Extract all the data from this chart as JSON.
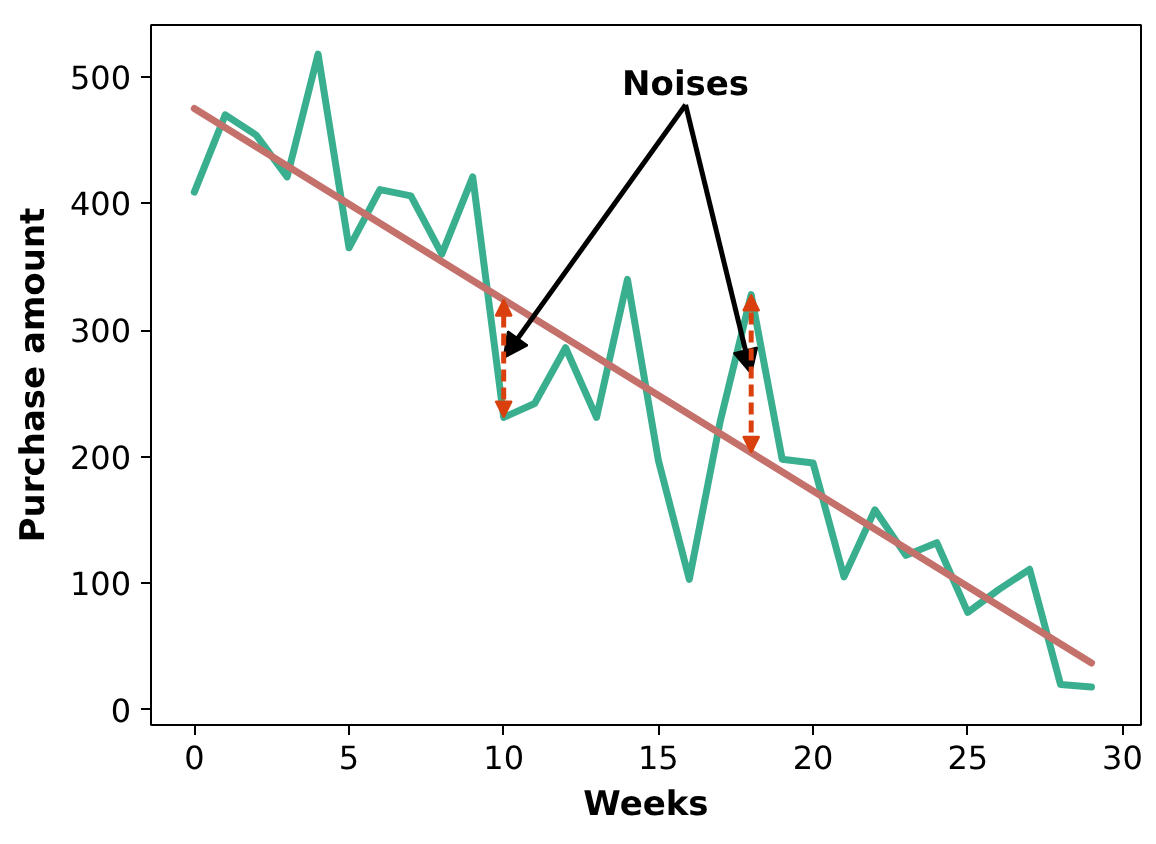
{
  "chart_data": {
    "type": "line",
    "xlabel": "Weeks",
    "ylabel": "Purchase amount",
    "x": [
      0,
      1,
      2,
      3,
      4,
      5,
      6,
      7,
      8,
      9,
      10,
      11,
      12,
      13,
      14,
      15,
      16,
      17,
      18,
      19,
      20,
      21,
      22,
      23,
      24,
      25,
      26,
      27,
      28,
      29
    ],
    "series": [
      {
        "color": "#3aaf8f",
        "values": [
          409,
          470,
          454,
          421,
          518,
          365,
          411,
          406,
          360,
          421,
          231,
          242,
          286,
          231,
          340,
          197,
          103,
          228,
          328,
          198,
          195,
          105,
          158,
          122,
          132,
          77,
          95,
          111,
          20,
          18
        ]
      },
      {
        "type": "line",
        "color": "#c4706b",
        "x": [
          0,
          29
        ],
        "values": [
          475,
          37
        ]
      }
    ],
    "xlim": [
      -1.4,
      30.6
    ],
    "ylim": [
      -12,
      541
    ],
    "xticks": [
      0,
      5,
      10,
      15,
      20,
      25,
      30
    ],
    "yticks": [
      0,
      100,
      200,
      300,
      400,
      500
    ],
    "grid": false,
    "marker": "none",
    "line_style": "solid",
    "annotations": [
      {
        "text": "Noises",
        "x": 10,
        "y": 278
      }
    ]
  }
}
